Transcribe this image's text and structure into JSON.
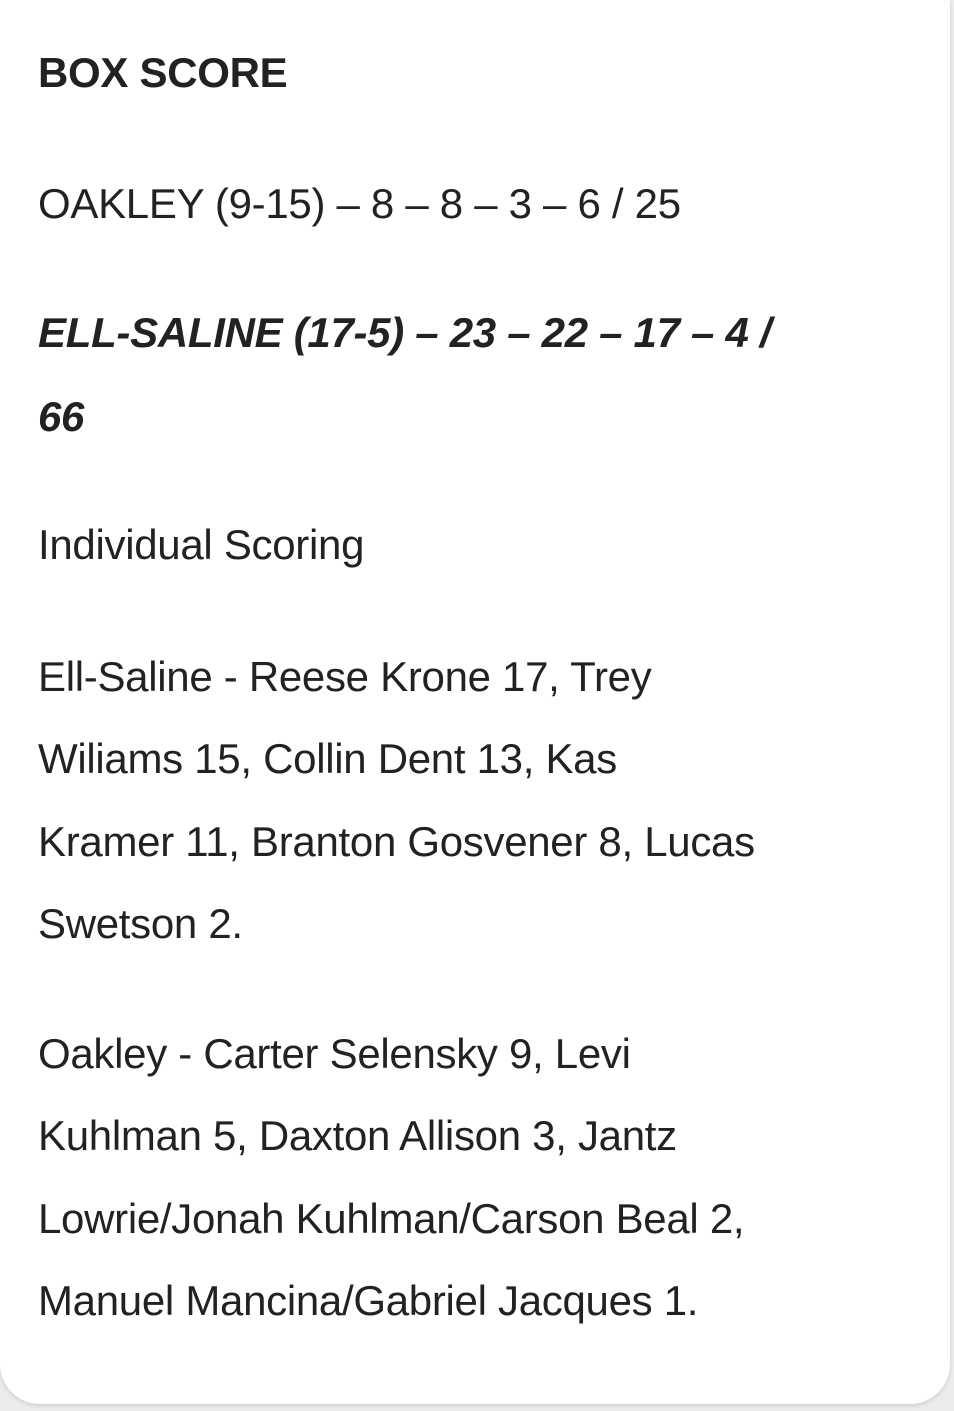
{
  "heading": "BOX SCORE",
  "oakley_line": "OAKLEY (9-15) – 8 – 8 – 3  – 6 / 25",
  "ellsaline_line": [
    "ELL-SALINE (17-5) – 23 – 22 – 17 – 4  /",
    "66"
  ],
  "individual_heading": "Individual Scoring",
  "ellsaline_scoring": [
    "Ell-Saline - Reese Krone 17, Trey",
    "Wiliams 15, Collin Dent 13, Kas",
    "Kramer 11, Branton Gosvener 8, Lucas",
    "Swetson 2."
  ],
  "oakley_scoring": [
    "Oakley - Carter Selensky 9, Levi",
    "Kuhlman 5, Daxton Allison 3, Jantz",
    "Lowrie/Jonah Kuhlman/Carson Beal 2,",
    "Manuel Mancina/Gabriel Jacques 1."
  ]
}
